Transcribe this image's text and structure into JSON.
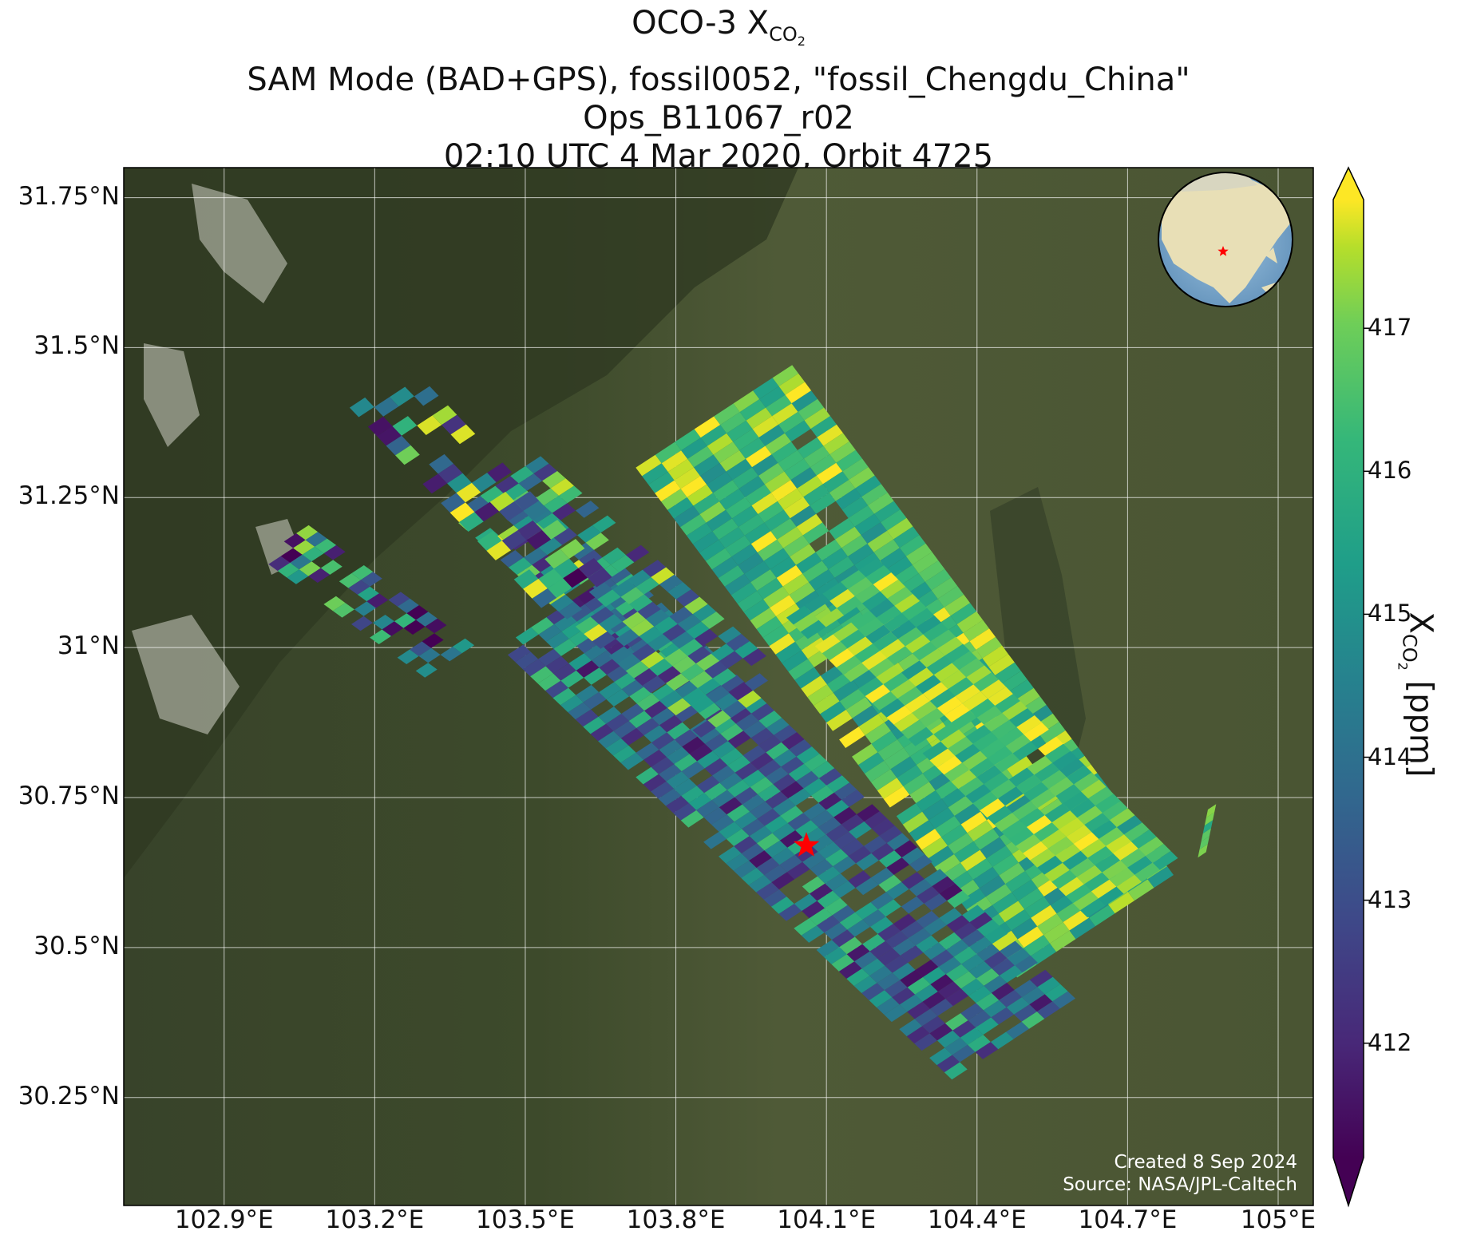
{
  "title": {
    "line1_prefix": "OCO-3 X",
    "line1_sub": "CO",
    "line1_subsub": "2",
    "line2": "SAM Mode (BAD+GPS), fossil0052, \"fossil_Chengdu_China\"",
    "line3": "Ops_B11067_r02",
    "line4": "02:10 UTC 4 Mar 2020, Orbit 4725"
  },
  "axes": {
    "lat_ticks": [
      "31.75°N",
      "31.5°N",
      "31.25°N",
      "31°N",
      "30.75°N",
      "30.5°N",
      "30.25°N"
    ],
    "lat_values": [
      31.75,
      31.5,
      31.25,
      31.0,
      30.75,
      30.5,
      30.25
    ],
    "lon_ticks": [
      "102.9°E",
      "103.2°E",
      "103.5°E",
      "103.8°E",
      "104.1°E",
      "104.4°E",
      "104.7°E",
      "105°E"
    ],
    "lon_values": [
      102.9,
      103.2,
      103.5,
      103.8,
      104.1,
      104.4,
      104.7,
      105.0
    ],
    "lon_range": [
      102.7,
      105.07
    ],
    "lat_range": [
      30.07,
      31.8
    ]
  },
  "colorbar": {
    "label_prefix": "X",
    "label_sub": "CO",
    "label_subsub": "2",
    "label_suffix": " [ppm]",
    "ticks": [
      "412",
      "413",
      "414",
      "415",
      "416",
      "417"
    ],
    "tick_values": [
      412,
      413,
      414,
      415,
      416,
      417
    ],
    "range": [
      411.2,
      417.9
    ],
    "colormap": "viridis",
    "extend": "both"
  },
  "target": {
    "name": "Chengdu",
    "lon": 104.06,
    "lat": 30.67,
    "color": "#ff0000"
  },
  "inset_globe": {
    "center_lon": 104.06,
    "center_lat": 30.67,
    "marker_color": "#ff0000"
  },
  "credit": {
    "line1": "Created 8 Sep 2024",
    "line2": "Source: NASA/JPL-Caltech"
  },
  "colors": {
    "mountain": "#3e4a2c",
    "plain": "#4c5634",
    "snow": "#e6e6e0",
    "grid": "#ffffff"
  }
}
